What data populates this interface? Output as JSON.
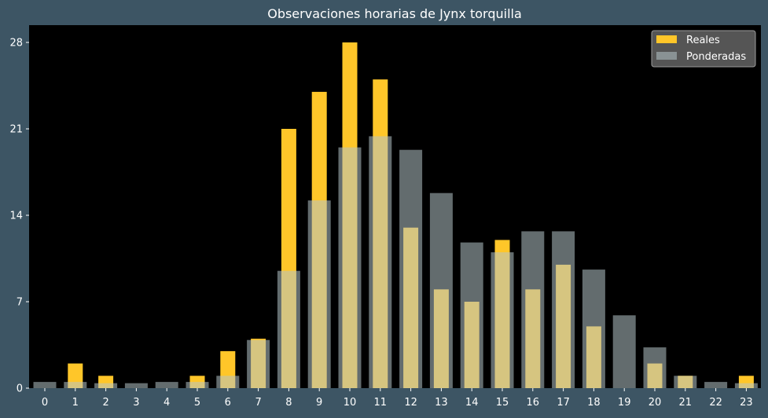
{
  "chart_data": {
    "type": "bar",
    "title": "Observaciones horarias de Jynx torquilla",
    "xlabel": "",
    "ylabel": "",
    "categories": [
      "0",
      "1",
      "2",
      "3",
      "4",
      "5",
      "6",
      "7",
      "8",
      "9",
      "10",
      "11",
      "12",
      "13",
      "14",
      "15",
      "16",
      "17",
      "18",
      "19",
      "20",
      "21",
      "22",
      "23"
    ],
    "ylim": [
      0,
      29.4
    ],
    "yticks": [
      0,
      7,
      14,
      21,
      28
    ],
    "grid": false,
    "legend_position": "top-right",
    "series": [
      {
        "name": "Reales",
        "color": "#ffc629",
        "values": [
          0,
          2,
          1,
          0,
          0,
          1,
          3,
          4,
          21,
          24,
          28,
          25,
          13,
          8,
          7,
          12,
          8,
          10,
          5,
          0,
          2,
          1,
          0,
          1
        ]
      },
      {
        "name": "Ponderadas",
        "color": "#b5c4c9",
        "values": [
          0.5,
          0.5,
          0.4,
          0.4,
          0.5,
          0.5,
          1.0,
          3.9,
          9.5,
          15.2,
          19.5,
          20.4,
          19.3,
          15.8,
          11.8,
          11.0,
          12.7,
          12.7,
          9.6,
          5.9,
          3.3,
          1.0,
          0.5,
          0.4
        ]
      }
    ]
  },
  "colors": {
    "background": "#3d5564",
    "plot_area": "#000000",
    "text": "#ffffff",
    "legend_bg": "#555555"
  }
}
